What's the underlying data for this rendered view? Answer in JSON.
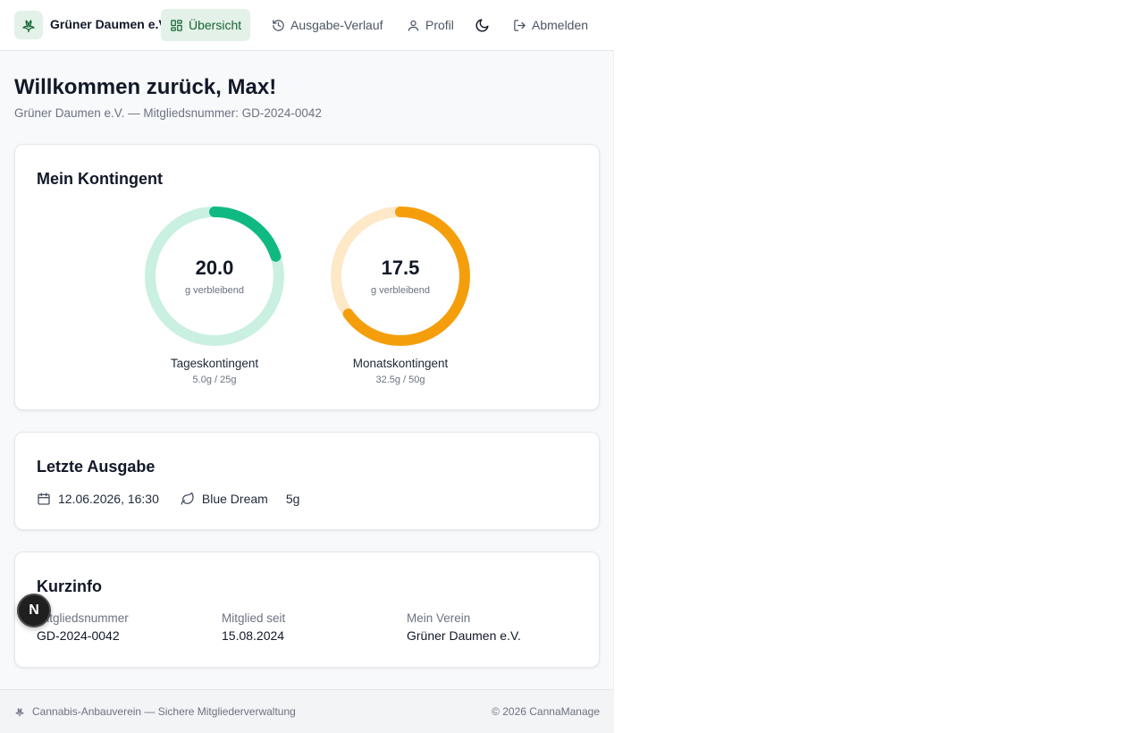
{
  "header": {
    "brand_name": "Grüner Daumen e.V.",
    "nav": [
      {
        "label": "Übersicht",
        "icon": "dashboard-icon",
        "active": true
      },
      {
        "label": "Ausgabe-Verlauf",
        "icon": "history-icon",
        "active": false
      },
      {
        "label": "Profil",
        "icon": "user-icon",
        "active": false
      },
      {
        "label": "Abmelden",
        "icon": "logout-icon",
        "active": false
      }
    ],
    "theme_toggle_icon": "moon-icon"
  },
  "page": {
    "title": "Willkommen zurück, Max!",
    "subtitle": "Grüner Daumen e.V. — Mitgliedsnummer: GD-2024-0042"
  },
  "quota": {
    "title": "Mein Kontingent",
    "daily": {
      "value": "20.0",
      "unit": "g verbleibend",
      "label": "Tageskontingent",
      "detail": "5.0g / 25g",
      "used_fraction": 0.2,
      "color": "#10b981",
      "track_color": "#c9f0e0"
    },
    "monthly": {
      "value": "17.5",
      "unit": "g verbleibend",
      "label": "Monatskontingent",
      "detail": "32.5g / 50g",
      "used_fraction": 0.65,
      "color": "#f59e0b",
      "track_color": "#fde9c8"
    }
  },
  "last_dispense": {
    "title": "Letzte Ausgabe",
    "date": "12.06.2026, 16:30",
    "strain": "Blue Dream",
    "amount": "5g"
  },
  "info": {
    "title": "Kurzinfo",
    "member_no_label": "Mitgliedsnummer",
    "member_no": "GD-2024-0042",
    "since_label": "Mitglied seit",
    "since": "15.08.2024",
    "club_label": "Mein Verein",
    "club": "Grüner Daumen e.V."
  },
  "footer": {
    "left": "Cannabis-Anbauverein — Sichere Mitgliederverwaltung",
    "right": "© 2026 CannaManage"
  },
  "dev_badge": "N",
  "colors": {
    "accent": "#166534",
    "accent_bg": "#e3f1e8"
  }
}
